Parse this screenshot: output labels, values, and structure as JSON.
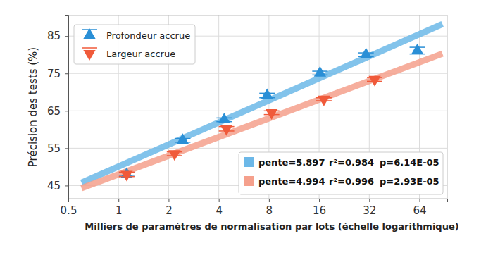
{
  "chart_data": {
    "type": "scatter",
    "x_label": "Milliers de paramètres de normalisation par lots (échelle logarithmique)",
    "y_label": "Précision des tests (%)",
    "log": "x",
    "grid": true,
    "legend": "upper left",
    "xlim": [
      0.5,
      94
    ],
    "ylim": [
      41.5,
      90.5
    ],
    "xticks": [
      0.5,
      1,
      2,
      4,
      8,
      16,
      32,
      64
    ],
    "yticks": [
      45,
      55,
      65,
      75,
      85
    ],
    "series": [
      {
        "name": "Profondeur accrue",
        "type": "scatter",
        "marker": "triangle-up",
        "color": "#2a8fd6",
        "x": [
          1.12,
          2.43,
          4.31,
          7.8,
          16.2,
          30.6,
          62.2
        ],
        "values": [
          48.0,
          57.1,
          62.6,
          69.1,
          75.1,
          80.0,
          81.1
        ],
        "errors": [
          0.5,
          0.5,
          0.5,
          0.6,
          0.5,
          0.5,
          0.9
        ]
      },
      {
        "name": "Largeur accrue",
        "type": "scatter",
        "marker": "triangle-down",
        "color": "#f05a3a",
        "x": [
          1.12,
          2.17,
          4.45,
          8.3,
          17.1,
          34.5
        ],
        "values": [
          48.0,
          53.5,
          60.2,
          64.5,
          68.1,
          73.4
        ],
        "errors": [
          0.6,
          0.5,
          0.6,
          0.5,
          0.4,
          0.5
        ]
      },
      {
        "type": "line",
        "color": "#6cb8e8",
        "x": [
          0.6,
          88
        ],
        "values": [
          45.75,
          88.2
        ],
        "annotation": [
          "pente=5.897",
          "r²=0.984",
          "p=6.14E-05"
        ]
      },
      {
        "type": "line",
        "color": "#f5a08c",
        "x": [
          0.6,
          88
        ],
        "values": [
          44.3,
          80.3
        ],
        "annotation": [
          "pente=4.994",
          "r²=0.996",
          "p=2.93E-05"
        ]
      }
    ]
  }
}
